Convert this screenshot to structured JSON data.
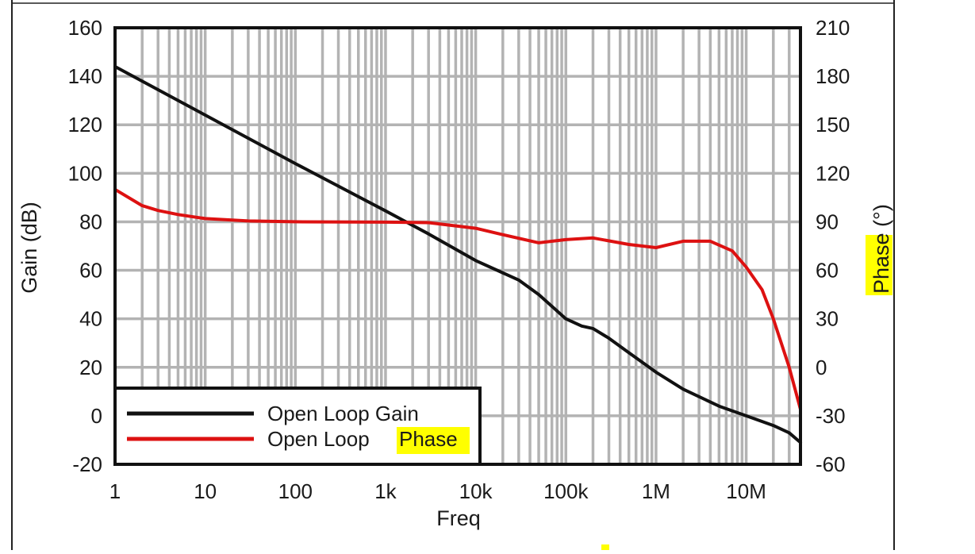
{
  "chart_data": {
    "type": "line",
    "title": "",
    "xlabel": "Freq",
    "ylabel": "Gain (dB)",
    "y2label_prefix": "",
    "y2label_highlight": "Phase",
    "y2label_suffix": " (°)",
    "x_scale": "log",
    "xlim": [
      1,
      40000000
    ],
    "ylim": [
      -20,
      160
    ],
    "y2lim": [
      -60,
      210
    ],
    "x_ticks": [
      "1",
      "10",
      "100",
      "1k",
      "10k",
      "100k",
      "1M",
      "10M"
    ],
    "x_tick_values": [
      1,
      10,
      100,
      1000,
      10000,
      100000,
      1000000,
      10000000
    ],
    "y_ticks": [
      "160",
      "140",
      "120",
      "100",
      "80",
      "60",
      "40",
      "20",
      "0",
      "-20"
    ],
    "y_tick_values": [
      160,
      140,
      120,
      100,
      80,
      60,
      40,
      20,
      0,
      -20
    ],
    "y2_ticks": [
      "210",
      "180",
      "150",
      "120",
      "90",
      "60",
      "30",
      "0",
      "-30",
      "-60"
    ],
    "y2_tick_values": [
      210,
      180,
      150,
      120,
      90,
      60,
      30,
      0,
      -30,
      -60
    ],
    "grid": true,
    "legend_position": "bottom-left",
    "series": [
      {
        "name": "Open Loop Gain",
        "axis": "left",
        "color": "#111111",
        "x": [
          1,
          10,
          100,
          1000,
          3000,
          10000,
          30000,
          50000,
          100000,
          150000,
          200000,
          300000,
          500000,
          1000000,
          2000000,
          5000000,
          10000000,
          20000000,
          30000000,
          40000000
        ],
        "y": [
          144,
          124,
          104,
          84.5,
          75,
          64,
          56,
          50,
          40,
          37,
          36,
          32,
          26,
          18,
          11,
          4,
          0,
          -4,
          -7,
          -11
        ]
      },
      {
        "name": "Open Loop",
        "name_highlight": "Phase",
        "axis": "right",
        "color": "#dd1111",
        "x": [
          1,
          2,
          3,
          5,
          10,
          30,
          100,
          1000,
          3000,
          10000,
          20000,
          50000,
          100000,
          200000,
          500000,
          1000000,
          2000000,
          4000000,
          7000000,
          10000000,
          15000000,
          20000000,
          30000000,
          40000000
        ],
        "y": [
          110,
          100,
          97,
          94.5,
          92,
          90.5,
          90,
          89.8,
          89.5,
          86,
          82,
          77,
          79,
          80,
          76,
          74,
          78,
          78,
          72,
          62,
          48,
          30,
          0,
          -26
        ]
      }
    ]
  },
  "colors": {
    "grid": "#b3b3b3",
    "axis": "#111111",
    "gain": "#111111",
    "phase": "#dd1111",
    "highlight": "#ffff00"
  }
}
